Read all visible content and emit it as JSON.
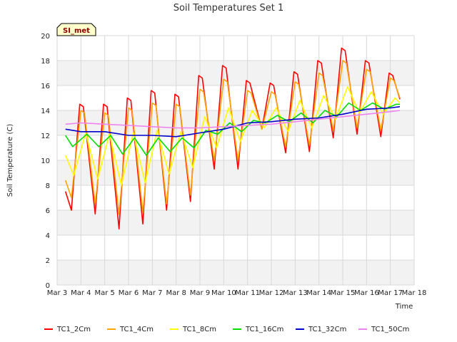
{
  "chart_data": {
    "type": "line",
    "title": "Soil Temperatures Set 1",
    "xlabel": "Time",
    "ylabel": "Soil Temperature (C)",
    "badge": "SI_met",
    "ylim": [
      0,
      20
    ],
    "yticks": [
      0,
      2,
      4,
      6,
      8,
      10,
      12,
      14,
      16,
      18,
      20
    ],
    "xlim": [
      0,
      15
    ],
    "xticks": [
      "Mar 3",
      "Mar 4",
      "Mar 5",
      "Mar 6",
      "Mar 7",
      "Mar 8",
      "Mar 9",
      "Mar 10",
      "Mar 11",
      "Mar 12",
      "Mar 13",
      "Mar 14",
      "Mar 15",
      "Mar 16",
      "Mar 17",
      "Mar 18"
    ],
    "grid": true,
    "legend_position": "bottom",
    "series": [
      {
        "name": "TC1_2Cm",
        "color": "#ff0000",
        "x": [
          0.35,
          0.6,
          0.95,
          1.1,
          1.6,
          1.95,
          2.1,
          2.6,
          2.95,
          3.1,
          3.6,
          3.95,
          4.1,
          4.6,
          4.95,
          5.1,
          5.6,
          5.95,
          6.1,
          6.6,
          6.95,
          7.1,
          7.6,
          7.95,
          8.1,
          8.6,
          8.95,
          9.1,
          9.6,
          9.95,
          10.1,
          10.6,
          10.95,
          11.1,
          11.6,
          11.95,
          12.1,
          12.6,
          12.95,
          13.1,
          13.6,
          13.95,
          14.1,
          14.4
        ],
        "y": [
          7.5,
          6.0,
          14.5,
          14.3,
          5.7,
          14.5,
          14.3,
          4.5,
          15.0,
          14.8,
          4.9,
          15.6,
          15.4,
          6.0,
          15.3,
          15.1,
          6.7,
          16.8,
          16.6,
          9.3,
          17.6,
          17.4,
          9.3,
          16.4,
          16.2,
          12.5,
          16.2,
          16.0,
          10.6,
          17.1,
          16.9,
          10.7,
          18.0,
          17.8,
          11.8,
          19.0,
          18.8,
          12.1,
          18.0,
          17.8,
          11.9,
          17.0,
          16.8,
          14.9
        ]
      },
      {
        "name": "TC1_4Cm",
        "color": "#ffa500",
        "x": [
          0.35,
          0.6,
          1.0,
          1.15,
          1.6,
          2.0,
          2.15,
          2.6,
          3.0,
          3.15,
          3.6,
          4.0,
          4.15,
          4.6,
          5.0,
          5.15,
          5.6,
          6.0,
          6.15,
          6.6,
          7.0,
          7.15,
          7.6,
          8.0,
          8.15,
          8.6,
          9.0,
          9.15,
          9.6,
          10.0,
          10.15,
          10.6,
          11.0,
          11.15,
          11.6,
          12.0,
          12.15,
          12.6,
          13.0,
          13.15,
          13.6,
          14.0,
          14.15,
          14.4
        ],
        "y": [
          8.4,
          7.0,
          14.0,
          13.8,
          6.5,
          13.8,
          13.6,
          5.7,
          14.2,
          14.0,
          5.8,
          14.6,
          14.4,
          6.5,
          14.5,
          14.3,
          7.2,
          15.7,
          15.5,
          10.0,
          16.5,
          16.3,
          10.0,
          15.6,
          15.4,
          12.5,
          15.5,
          15.3,
          11.1,
          16.3,
          16.1,
          11.2,
          17.0,
          16.8,
          12.4,
          18.0,
          17.8,
          12.6,
          17.3,
          17.1,
          12.4,
          16.6,
          16.4,
          15.0
        ]
      },
      {
        "name": "TC1_8Cm",
        "color": "#ffff00",
        "x": [
          0.35,
          0.7,
          1.2,
          1.7,
          2.2,
          2.7,
          3.2,
          3.7,
          4.2,
          4.7,
          5.2,
          5.7,
          6.2,
          6.7,
          7.2,
          7.7,
          8.2,
          8.7,
          9.2,
          9.7,
          10.2,
          10.7,
          11.2,
          11.7,
          12.2,
          12.7,
          13.2,
          13.7,
          14.2,
          14.4
        ],
        "y": [
          10.4,
          8.8,
          12.2,
          8.5,
          12.1,
          8.0,
          12.2,
          8.2,
          12.4,
          8.9,
          12.3,
          9.4,
          13.5,
          11.0,
          14.2,
          11.5,
          14.0,
          12.6,
          14.2,
          12.3,
          14.8,
          12.6,
          15.2,
          13.3,
          15.9,
          13.8,
          15.5,
          13.7,
          15.0,
          14.6
        ]
      },
      {
        "name": "TC1_16Cm",
        "color": "#00dd00",
        "x": [
          0.35,
          0.65,
          1.25,
          1.75,
          2.25,
          2.75,
          3.25,
          3.75,
          4.25,
          4.75,
          5.25,
          5.75,
          6.25,
          6.75,
          7.25,
          7.75,
          8.25,
          8.75,
          9.25,
          9.75,
          10.25,
          10.75,
          11.25,
          11.75,
          12.25,
          12.75,
          13.25,
          13.75,
          14.25,
          14.4
        ],
        "y": [
          12.0,
          11.1,
          12.1,
          11.1,
          12.0,
          10.5,
          11.8,
          10.4,
          11.8,
          10.7,
          11.8,
          11.0,
          12.4,
          12.1,
          13.0,
          12.3,
          13.2,
          13.0,
          13.6,
          13.1,
          13.8,
          13.0,
          14.0,
          13.5,
          14.6,
          14.0,
          14.6,
          14.1,
          14.5,
          14.5
        ]
      },
      {
        "name": "TC1_32Cm",
        "color": "#0000cc",
        "x": [
          0.35,
          1.0,
          2.0,
          3.0,
          4.0,
          5.0,
          6.0,
          7.0,
          8.0,
          9.0,
          10.0,
          11.0,
          12.0,
          13.0,
          14.0,
          14.4
        ],
        "y": [
          12.5,
          12.3,
          12.3,
          12.0,
          12.0,
          11.9,
          12.2,
          12.5,
          13.0,
          13.1,
          13.3,
          13.4,
          13.7,
          14.1,
          14.2,
          14.3
        ]
      },
      {
        "name": "TC1_50Cm",
        "color": "#ee82ee",
        "x": [
          0.35,
          1.0,
          2.0,
          3.0,
          4.0,
          5.0,
          6.0,
          7.0,
          8.0,
          9.0,
          10.0,
          11.0,
          12.0,
          13.0,
          14.0,
          14.4
        ],
        "y": [
          12.9,
          13.0,
          12.9,
          12.8,
          12.7,
          12.6,
          12.6,
          12.7,
          12.8,
          12.9,
          13.1,
          13.3,
          13.5,
          13.7,
          13.9,
          14.0
        ]
      }
    ]
  }
}
